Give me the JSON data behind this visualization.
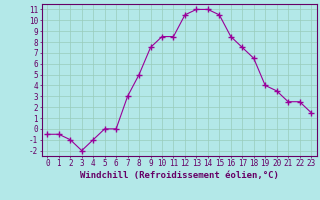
{
  "x": [
    0,
    1,
    2,
    3,
    4,
    5,
    6,
    7,
    8,
    9,
    10,
    11,
    12,
    13,
    14,
    15,
    16,
    17,
    18,
    19,
    20,
    21,
    22,
    23
  ],
  "y": [
    -0.5,
    -0.5,
    -1,
    -2,
    -1,
    0,
    0,
    3,
    5,
    7.5,
    8.5,
    8.5,
    10.5,
    11,
    11,
    10.5,
    8.5,
    7.5,
    6.5,
    4,
    3.5,
    2.5,
    2.5,
    1.5
  ],
  "xlabel": "Windchill (Refroidissement éolien,°C)",
  "ylim": [
    -2.5,
    11.5
  ],
  "xlim": [
    -0.5,
    23.5
  ],
  "yticks": [
    -2,
    -1,
    0,
    1,
    2,
    3,
    4,
    5,
    6,
    7,
    8,
    9,
    10,
    11
  ],
  "xticks": [
    0,
    1,
    2,
    3,
    4,
    5,
    6,
    7,
    8,
    9,
    10,
    11,
    12,
    13,
    14,
    15,
    16,
    17,
    18,
    19,
    20,
    21,
    22,
    23
  ],
  "line_color": "#990099",
  "marker": "+",
  "bg_color": "#b3e8e8",
  "grid_color": "#99ccbb",
  "spine_color": "#660066",
  "tick_color": "#660066",
  "xlabel_color": "#660066",
  "tick_fontsize": 5.5,
  "xlabel_fontsize": 6.5
}
